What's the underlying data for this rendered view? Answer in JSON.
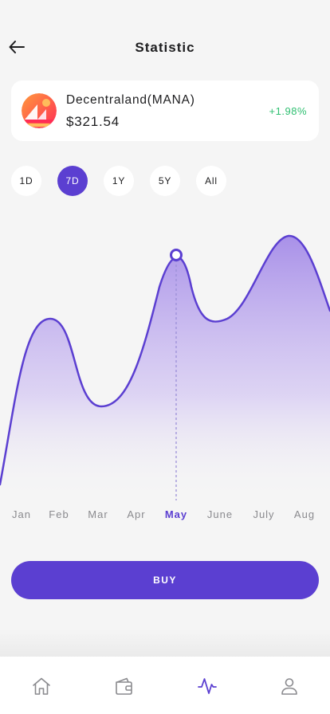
{
  "header": {
    "title": "Statistic",
    "back_icon": "arrow-left-icon"
  },
  "coin": {
    "name": "Decentraland(MANA)",
    "price": "$321.54",
    "change": "+1.98%",
    "change_color": "#2fbf71",
    "logo_icon": "decentraland-logo"
  },
  "ranges": [
    {
      "label": "1D",
      "active": false
    },
    {
      "label": "7D",
      "active": true
    },
    {
      "label": "1Y",
      "active": false
    },
    {
      "label": "5Y",
      "active": false
    },
    {
      "label": "All",
      "active": false
    }
  ],
  "chart_data": {
    "type": "area",
    "categories": [
      "Jan",
      "Feb",
      "Mar",
      "Apr",
      "May",
      "June",
      "July",
      "Aug"
    ],
    "selected": "May",
    "title": "",
    "xlabel": "",
    "ylabel": "",
    "grid": false,
    "legend": "none"
  },
  "buy": {
    "label": "BUY"
  },
  "tabbar": {
    "items": [
      "home-icon",
      "wallet-icon",
      "activity-icon",
      "user-icon"
    ],
    "active": "activity-icon"
  },
  "colors": {
    "accent": "#5b3fd1",
    "background": "#f5f5f5",
    "card": "#ffffff",
    "text": "#1d1d1f",
    "muted": "#8a8a8e"
  }
}
